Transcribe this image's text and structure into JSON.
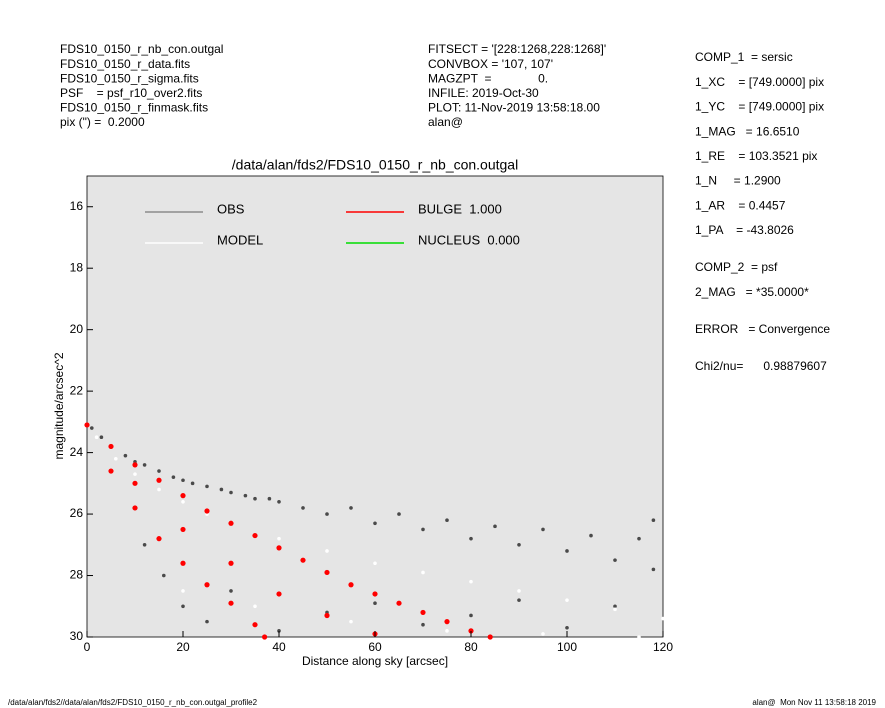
{
  "header_left": [
    "FDS10_0150_r_nb_con.outgal",
    "FDS10_0150_r_data.fits",
    "FDS10_0150_r_sigma.fits",
    "PSF    = psf_r10_over2.fits",
    "FDS10_0150_r_finmask.fits",
    "pix (\") =  0.2000"
  ],
  "header_mid": [
    "FITSECT = '[228:1268,228:1268]'",
    "CONVBOX = '107, 107'",
    "MAGZPT  =              0.",
    "INFILE: 2019-Oct-30",
    "PLOT: 11-Nov-2019 13:58:18.00",
    "alan@"
  ],
  "right_panel": [
    [
      "COMP_1  = sersic",
      "1_XC    = [749.0000] pix",
      "1_YC    = [749.0000] pix",
      "1_MAG   = 16.6510",
      "1_RE    = 103.3521 pix",
      "1_N     = 1.2900",
      "1_AR    = 0.4457",
      "1_PA    = -43.8026"
    ],
    [
      "COMP_2  = psf",
      "2_MAG   = *35.0000*"
    ],
    [
      "ERROR   = Convergence"
    ],
    [
      "Chi2/nu=      0.98879607"
    ]
  ],
  "footer_left": "/data/alan/fds2//data/alan/fds2/FDS10_0150_r_nb_con.outgal_profile2",
  "footer_right": "alan@  Mon Nov 11 13:58:18 2019",
  "chart_data": {
    "type": "scatter",
    "title": "/data/alan/fds2/FDS10_0150_r_nb_con.outgal",
    "xlabel": "Distance along sky [arcsec]",
    "ylabel": "magnitude/arcsec^2",
    "xlim": [
      0,
      120
    ],
    "ylim": [
      30,
      15
    ],
    "xticks": [
      0,
      20,
      40,
      60,
      80,
      100,
      120
    ],
    "yticks": [
      16,
      18,
      20,
      22,
      24,
      26,
      28,
      30
    ],
    "background": "#e5e5e5",
    "series": [
      {
        "name": "OBS",
        "color": "#4a4a4a",
        "legend_color": "#8c8c8c",
        "x": [
          1,
          3,
          5,
          8,
          10,
          12,
          15,
          18,
          20,
          22,
          25,
          28,
          30,
          33,
          35,
          38,
          40,
          45,
          50,
          55,
          60,
          65,
          70,
          75,
          80,
          85,
          90,
          95,
          100,
          105,
          110,
          115,
          118,
          12,
          16,
          20,
          25,
          30,
          40,
          50,
          60,
          70,
          80,
          90,
          100,
          110,
          118
        ],
        "values": [
          23.2,
          23.5,
          23.8,
          24.1,
          24.3,
          24.4,
          24.6,
          24.8,
          24.9,
          25.0,
          25.1,
          25.2,
          25.3,
          25.4,
          25.5,
          25.5,
          25.6,
          25.8,
          26.0,
          25.8,
          26.3,
          26.0,
          26.5,
          26.2,
          26.8,
          26.4,
          27.0,
          26.5,
          27.2,
          26.7,
          27.5,
          26.8,
          27.8,
          27.0,
          28.0,
          29.0,
          29.5,
          28.5,
          29.8,
          29.2,
          28.9,
          29.6,
          29.3,
          28.8,
          29.7,
          29.0,
          26.2
        ]
      },
      {
        "name": "MODEL",
        "color": "#ffffff",
        "legend_color": "#ffffff",
        "x": [
          2,
          6,
          10,
          15,
          20,
          25,
          30,
          40,
          50,
          60,
          70,
          80,
          90,
          100,
          110,
          120,
          20,
          35,
          55,
          75,
          95,
          115
        ],
        "values": [
          23.5,
          24.2,
          24.7,
          25.2,
          25.6,
          26.0,
          26.3,
          26.8,
          27.2,
          27.6,
          27.9,
          28.2,
          28.5,
          28.8,
          29.1,
          29.4,
          28.5,
          29.0,
          29.5,
          29.8,
          29.9,
          30.0
        ]
      },
      {
        "name": "BULGE  1.000",
        "color": "#ff0000",
        "legend_color": "#ff0000",
        "x": [
          0,
          5,
          10,
          15,
          20,
          25,
          30,
          35,
          40,
          45,
          50,
          55,
          60,
          65,
          70,
          75,
          80,
          84,
          5,
          10,
          15,
          20,
          25,
          30,
          35,
          37,
          10,
          20,
          30,
          40,
          50,
          60
        ],
        "values": [
          23.1,
          23.8,
          24.4,
          24.9,
          25.4,
          25.9,
          26.3,
          26.7,
          27.1,
          27.5,
          27.9,
          28.3,
          28.6,
          28.9,
          29.2,
          29.5,
          29.8,
          30.0,
          24.6,
          25.8,
          26.8,
          27.6,
          28.3,
          28.9,
          29.6,
          30.0,
          25.0,
          26.5,
          27.6,
          28.6,
          29.3,
          29.9
        ]
      },
      {
        "name": "NUCLEUS  0.000",
        "color": "#00dd00",
        "legend_color": "#00dd00",
        "x": [],
        "values": []
      }
    ]
  }
}
